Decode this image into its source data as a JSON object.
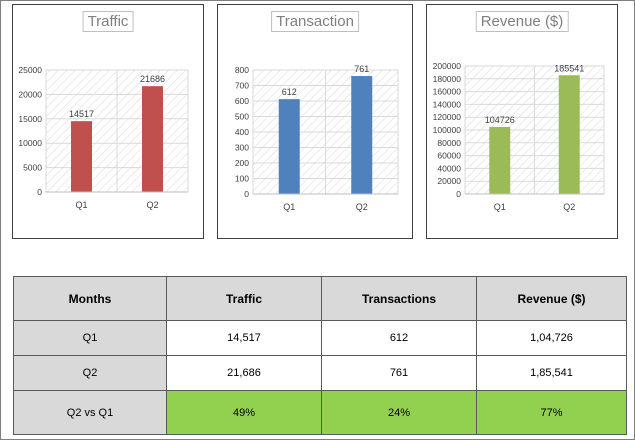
{
  "chart_data": [
    {
      "type": "bar",
      "title": "Traffic",
      "categories": [
        "Q1",
        "Q2"
      ],
      "values": [
        14517,
        21686
      ],
      "color": "#c0504d",
      "yticks": [
        0,
        5000,
        10000,
        15000,
        20000,
        25000
      ],
      "ylim": [
        0,
        25000
      ],
      "grid": true
    },
    {
      "type": "bar",
      "title": "Transaction",
      "categories": [
        "Q1",
        "Q2"
      ],
      "values": [
        612,
        761
      ],
      "color": "#4f81bd",
      "yticks": [
        0,
        100,
        200,
        300,
        400,
        500,
        600,
        700,
        800
      ],
      "ylim": [
        0,
        800
      ],
      "grid": true
    },
    {
      "type": "bar",
      "title": "Revenue ($)",
      "categories": [
        "Q1",
        "Q2"
      ],
      "values": [
        104726,
        185541
      ],
      "color": "#9bbb59",
      "yticks": [
        0,
        20000,
        40000,
        60000,
        80000,
        100000,
        120000,
        140000,
        160000,
        180000,
        200000
      ],
      "ylim": [
        0,
        200000
      ],
      "grid": true
    }
  ],
  "table": {
    "headers": [
      "Months",
      "Traffic",
      "Transactions",
      "Revenue ($)"
    ],
    "rows": [
      [
        "Q1",
        "14,517",
        "612",
        "1,04,726"
      ],
      [
        "Q2",
        "21,686",
        "761",
        "1,85,541"
      ],
      [
        "Q2 vs Q1",
        "49%",
        "24%",
        "77%"
      ]
    ],
    "highlight_color": "#92d050"
  }
}
